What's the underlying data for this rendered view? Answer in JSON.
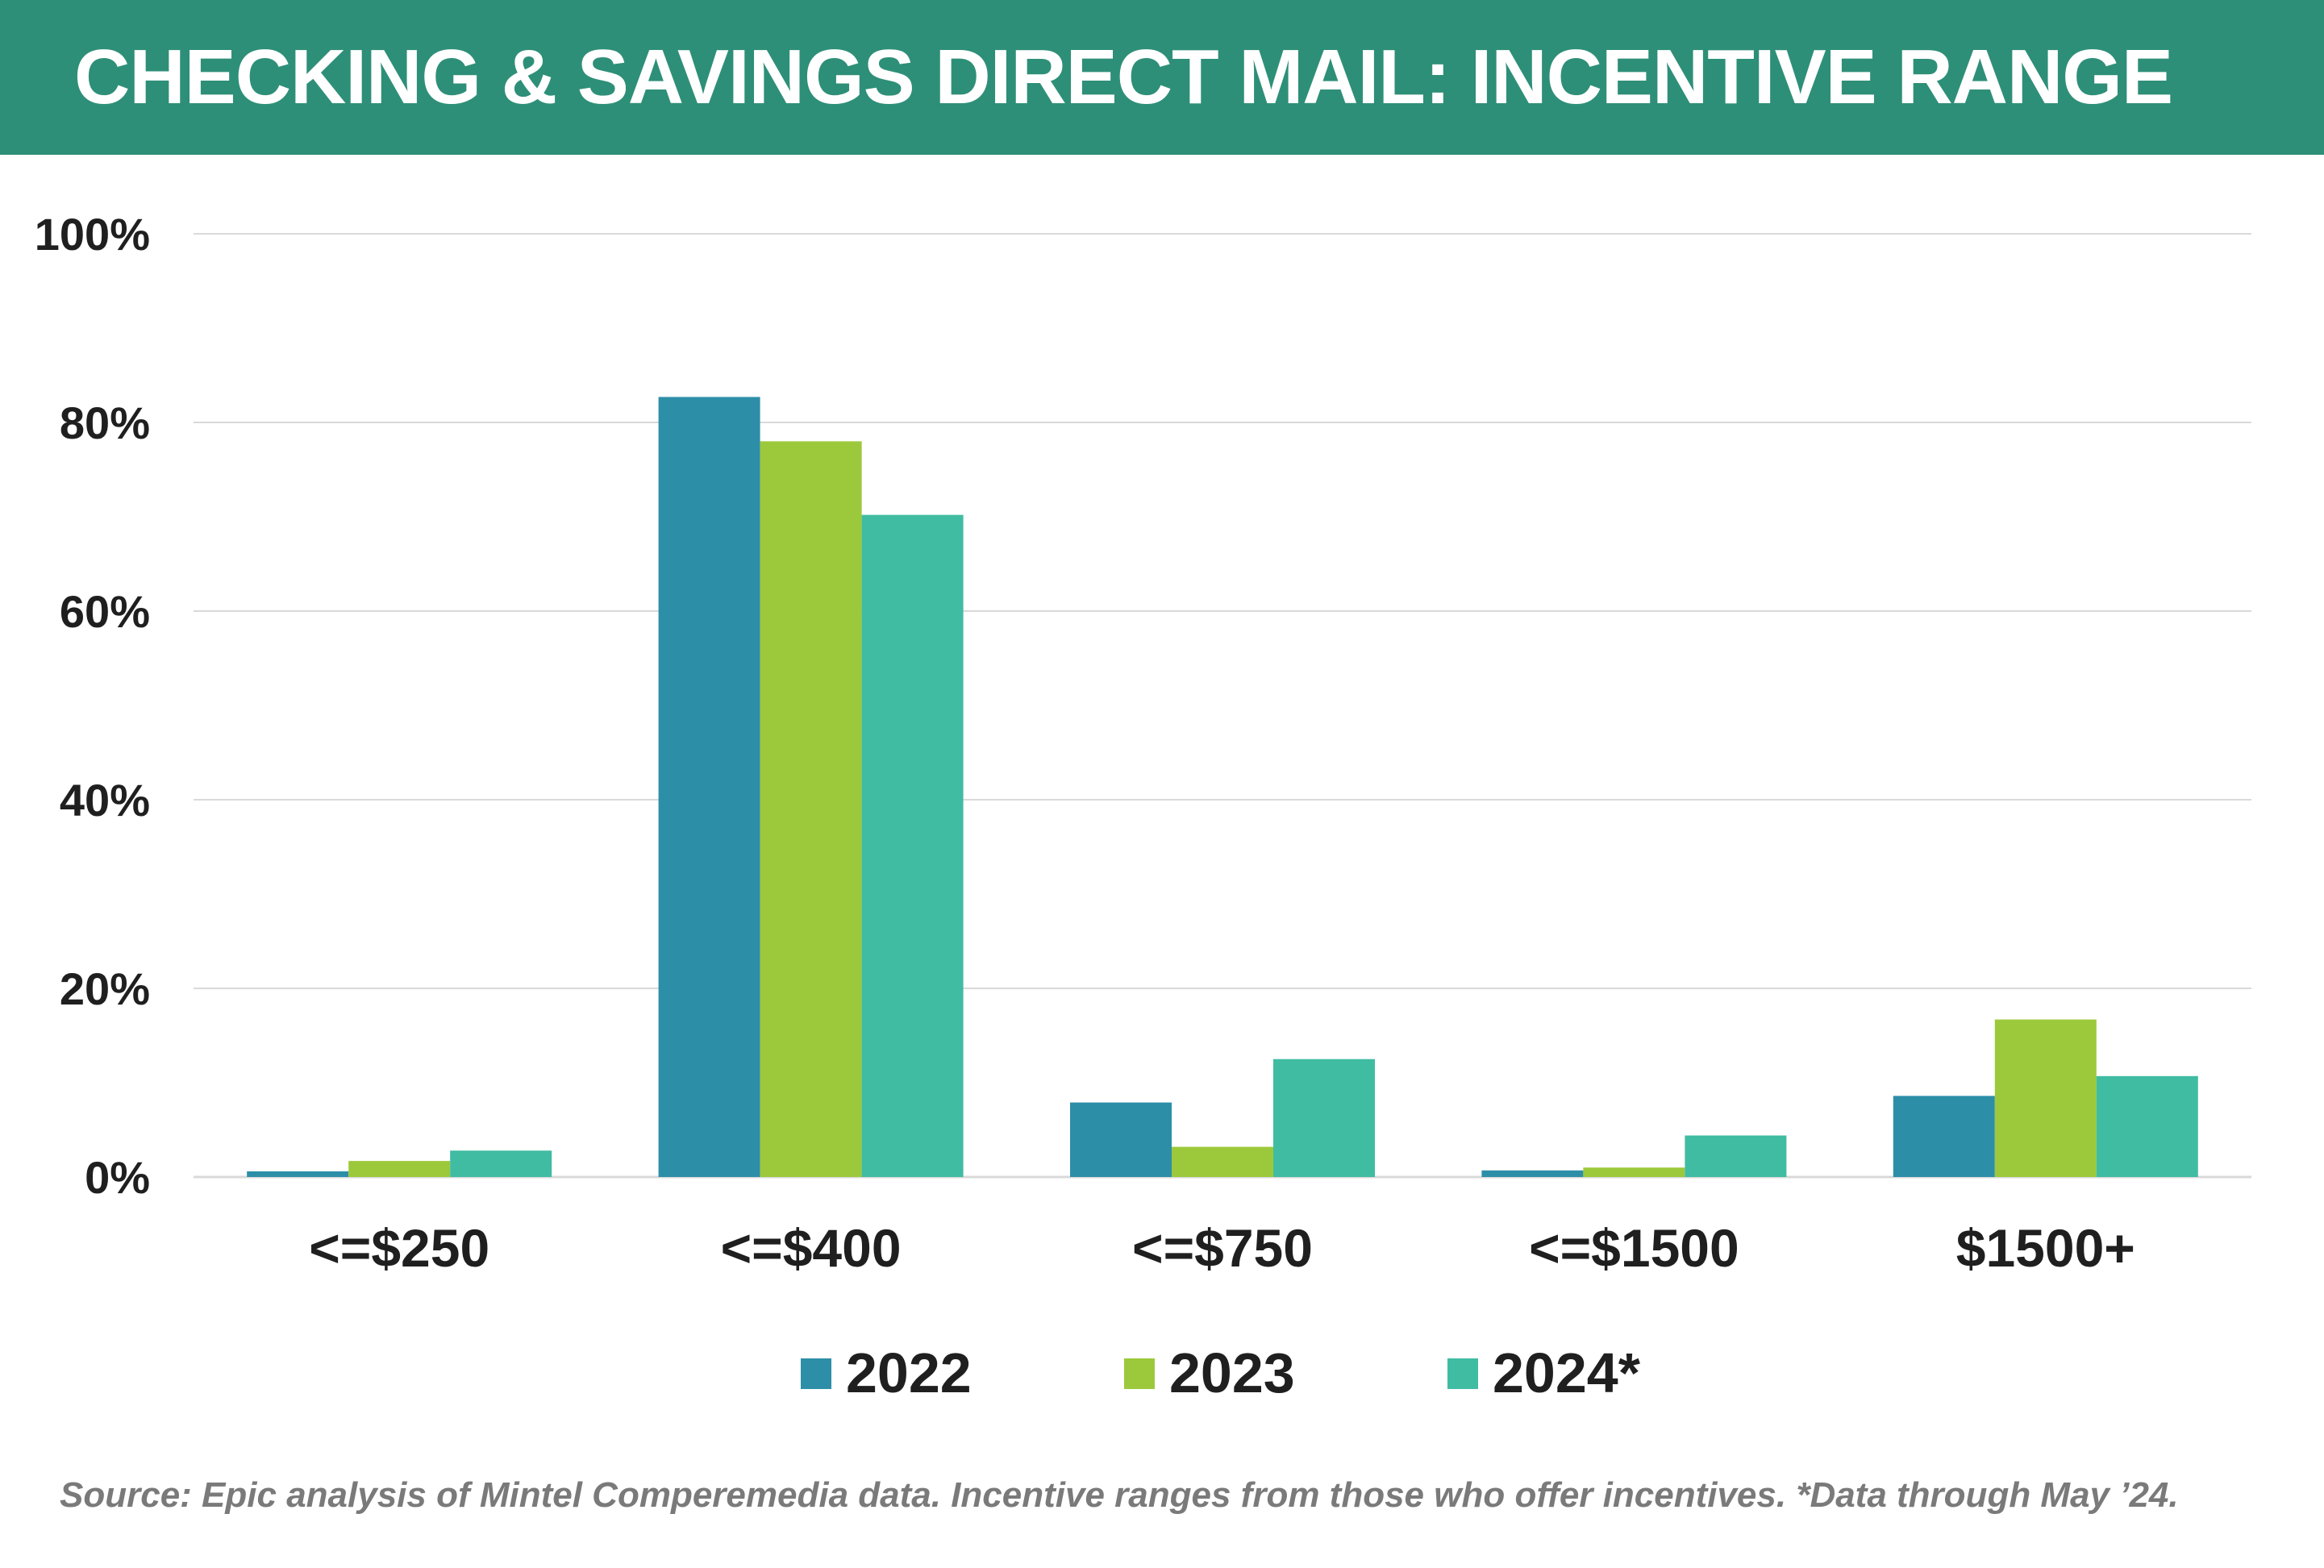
{
  "title": "CHECKING & SAVINGS DIRECT MAIL: INCENTIVE RANGE",
  "source": "Source: Epic analysis of Mintel Comperemedia data. Incentive ranges from those who offer incentives. *Data through May ’24.",
  "colors": {
    "title_bar": "#2e8f78",
    "gridline": "#d9d9d9",
    "axis": "#d9d9d9"
  },
  "chart_data": {
    "type": "bar",
    "title": "CHECKING & SAVINGS DIRECT MAIL: INCENTIVE RANGE",
    "xlabel": "",
    "ylabel": "",
    "categories": [
      "<=$250",
      "<=$400",
      "<=$750",
      "<=$1500",
      "$1500+"
    ],
    "series": [
      {
        "name": "2022",
        "color": "#2d8ea8",
        "values": [
          0.6,
          82.7,
          7.9,
          0.7,
          8.6
        ]
      },
      {
        "name": "2023",
        "color": "#9cc93b",
        "values": [
          1.7,
          78.0,
          3.2,
          1.0,
          16.7
        ]
      },
      {
        "name": "2024*",
        "color": "#40bca2",
        "values": [
          2.8,
          70.2,
          12.5,
          4.4,
          10.7
        ]
      }
    ],
    "ylim": [
      0,
      100
    ],
    "yticks": [
      0,
      20,
      40,
      60,
      80,
      100
    ],
    "ytick_labels": [
      "0%",
      "20%",
      "40%",
      "60%",
      "80%",
      "100%"
    ],
    "grid": true,
    "legend": "bottom-center"
  }
}
